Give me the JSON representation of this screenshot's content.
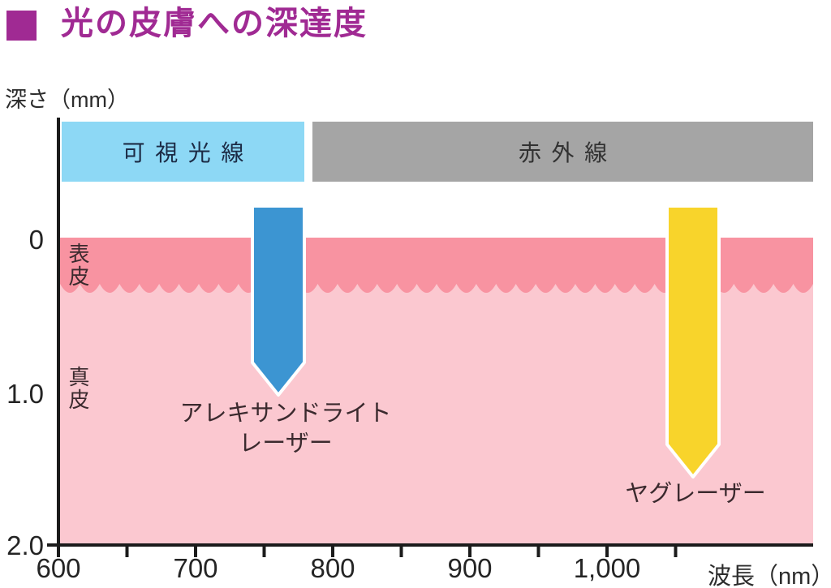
{
  "title": "光の皮膚への深達度",
  "axes": {
    "y_label": "深さ（mm）",
    "y_ticks": [
      "0",
      "1.0",
      "2.0"
    ],
    "x_label": "波長（nm）",
    "x_ticks": [
      "600",
      "700",
      "800",
      "900",
      "1,000"
    ]
  },
  "bands": {
    "visible_light": "可視光線",
    "infrared": "赤外線"
  },
  "skin_layers": {
    "epidermis": "表皮",
    "dermis": "真皮"
  },
  "lasers": {
    "alexandrite": {
      "label_line1": "アレキサンドライト",
      "label_line2": "レーザー"
    },
    "yag": {
      "label": "ヤグレーザー"
    }
  },
  "colors": {
    "title": "#A02A93",
    "visible_band": "#8DD8F5",
    "infrared_band": "#A5A5A5",
    "epidermis": "#F893A1",
    "dermis": "#FBC8D0",
    "alexandrite_arrow": "#3C95D2",
    "yag_arrow": "#F8D42B",
    "axis": "#1B1B1B"
  },
  "chart_data": {
    "type": "scatter",
    "title": "光の皮膚への深達度",
    "xlabel": "波長（nm）",
    "ylabel": "深さ（mm）",
    "xlim": [
      600,
      1150
    ],
    "ylim": [
      0,
      2.0
    ],
    "x_ticks": [
      600,
      700,
      800,
      900,
      1000
    ],
    "y_ticks": [
      0,
      1.0,
      2.0
    ],
    "grid": false,
    "wavelength_bands": [
      {
        "label": "可視光線",
        "x_range_nm": [
          600,
          780
        ]
      },
      {
        "label": "赤外線",
        "x_range_nm": [
          780,
          1150
        ]
      }
    ],
    "skin_layers": [
      {
        "label": "表皮",
        "depth_range_mm": [
          0,
          0.33
        ]
      },
      {
        "label": "真皮",
        "depth_range_mm": [
          0.33,
          2.0
        ]
      }
    ],
    "series": [
      {
        "name": "アレキサンドライトレーザー",
        "wavelength_nm": 755,
        "penetration_depth_mm": 1.0
      },
      {
        "name": "ヤグレーザー",
        "wavelength_nm": 1064,
        "penetration_depth_mm": 1.55
      }
    ]
  }
}
